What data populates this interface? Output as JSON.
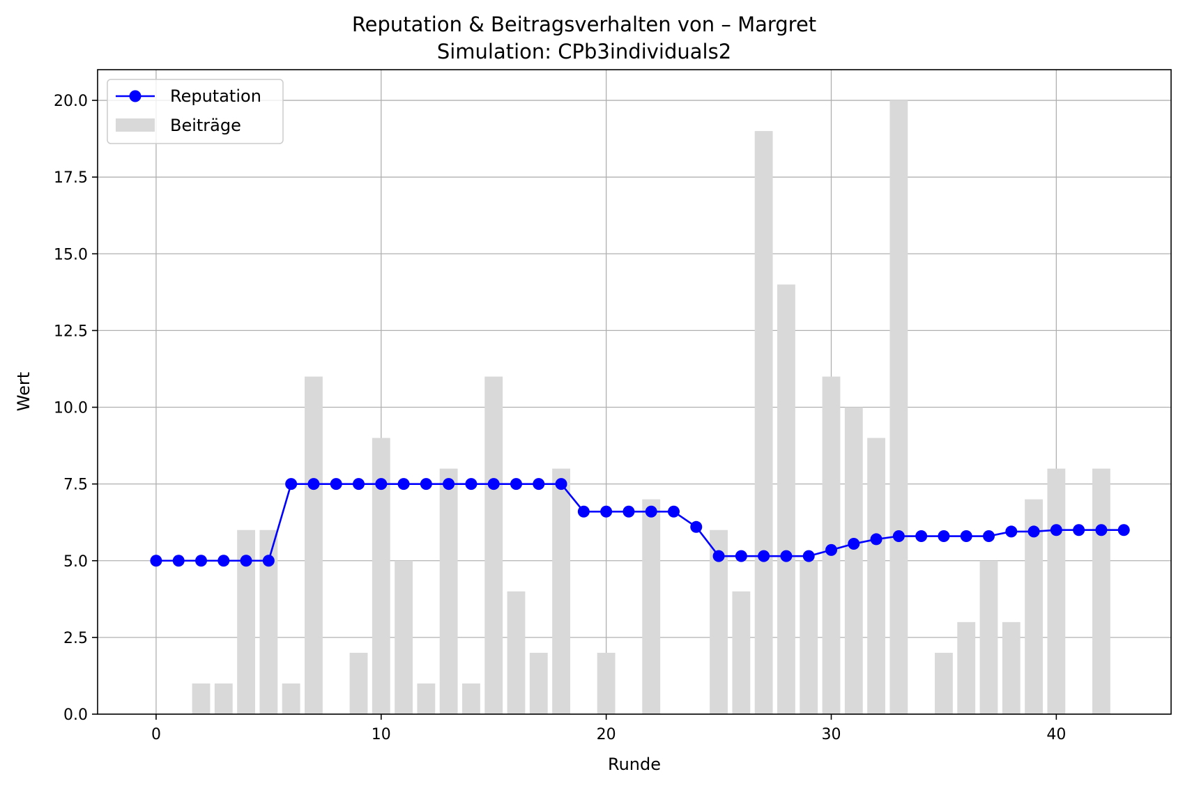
{
  "chart_data": {
    "type": "bar",
    "title": "Reputation & Beitragsverhalten von – Margret",
    "subtitle": "Simulation: CPb3individuals2",
    "xlabel": "Runde",
    "ylabel": "Wert",
    "xlim": [
      -2.6,
      45.1
    ],
    "ylim": [
      0,
      21
    ],
    "xticks": [
      0,
      10,
      20,
      30,
      40
    ],
    "yticks": [
      0.0,
      2.5,
      5.0,
      7.5,
      10.0,
      12.5,
      15.0,
      17.5,
      20.0
    ],
    "ytick_labels": [
      "0.0",
      "2.5",
      "5.0",
      "7.5",
      "10.0",
      "12.5",
      "15.0",
      "17.5",
      "20.0"
    ],
    "grid": true,
    "legend_position": "top-left",
    "x": [
      0,
      1,
      2,
      3,
      4,
      5,
      6,
      7,
      8,
      9,
      10,
      11,
      12,
      13,
      14,
      15,
      16,
      17,
      18,
      19,
      20,
      21,
      22,
      23,
      24,
      25,
      26,
      27,
      28,
      29,
      30,
      31,
      32,
      33,
      34,
      35,
      36,
      37,
      38,
      39,
      40,
      41,
      42,
      43
    ],
    "series": [
      {
        "name": "Reputation",
        "kind": "line",
        "color": "#0000ff",
        "marker": "circle",
        "values": [
          5.0,
          5.0,
          5.0,
          5.0,
          5.0,
          5.0,
          7.5,
          7.5,
          7.5,
          7.5,
          7.5,
          7.5,
          7.5,
          7.5,
          7.5,
          7.5,
          7.5,
          7.5,
          7.5,
          6.6,
          6.6,
          6.6,
          6.6,
          6.6,
          6.1,
          5.15,
          5.15,
          5.15,
          5.15,
          5.15,
          5.35,
          5.55,
          5.7,
          5.8,
          5.8,
          5.8,
          5.8,
          5.8,
          5.95,
          5.95,
          6.0,
          6.0,
          6.0,
          6.0
        ]
      },
      {
        "name": "Beiträge",
        "kind": "bar",
        "color": "#d9d9d9",
        "values": [
          0,
          0,
          1,
          1,
          6,
          6,
          1,
          11,
          0,
          2,
          9,
          5,
          1,
          8,
          1,
          11,
          4,
          2,
          8,
          0,
          2,
          0,
          7,
          0,
          0,
          6,
          4,
          19,
          14,
          5,
          11,
          10,
          9,
          20,
          0,
          2,
          3,
          5,
          3,
          7,
          8,
          0,
          8,
          0
        ]
      }
    ]
  }
}
